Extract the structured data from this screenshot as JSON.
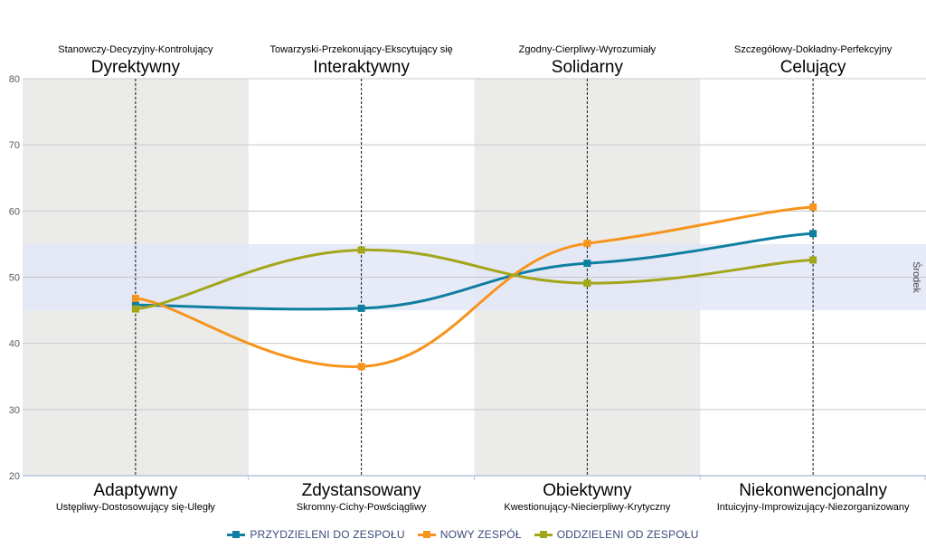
{
  "chart_data": {
    "type": "line",
    "ylim": [
      20,
      80
    ],
    "yticks": [
      20,
      30,
      40,
      50,
      60,
      70,
      80
    ],
    "grid": true,
    "legend_position": "bottom",
    "band": {
      "from": 45,
      "to": 55,
      "label": "Środek"
    },
    "columns": [
      {
        "top_sub": "Stanowczy-Decyzyjny-Kontrolujący",
        "top_main": "Dyrektywny",
        "bottom_main": "Adaptywny",
        "bottom_sub": "Ustępliwy-Dostosowujący się-Uległy"
      },
      {
        "top_sub": "Towarzyski-Przekonujący-Ekscytujący się",
        "top_main": "Interaktywny",
        "bottom_main": "Zdystansowany",
        "bottom_sub": "Skromny-Cichy-Powściągliwy"
      },
      {
        "top_sub": "Zgodny-Cierpliwy-Wyrozumiały",
        "top_main": "Solidarny",
        "bottom_main": "Obiektywny",
        "bottom_sub": "Kwestionujący-Niecierpliwy-Krytyczny"
      },
      {
        "top_sub": "Szczegółowy-Dokładny-Perfekcyjny",
        "top_main": "Celujący",
        "bottom_main": "Niekonwencjonalny",
        "bottom_sub": "Intuicyjny-Improwizujący-Niezorganizowany"
      }
    ],
    "series": [
      {
        "name": "PRZYDZIELENI DO ZESPOŁU",
        "color": "#0e7fa0",
        "values": [
          45.8,
          45.3,
          52.1,
          56.6
        ]
      },
      {
        "name": "NOWY ZESPÓŁ",
        "color": "#f7941d",
        "values": [
          46.8,
          36.5,
          55.1,
          60.6
        ]
      },
      {
        "name": "ODDZIELENI OD ZESPOŁU",
        "color": "#a2a619",
        "values": [
          45.2,
          54.1,
          49.1,
          52.6
        ]
      }
    ],
    "colors": {
      "band": "#e3e8f7",
      "shade": "#ebecea",
      "grid": "#c8c8c8",
      "axis": "#b6c3de",
      "tick_text": "#5a5a5a"
    }
  }
}
